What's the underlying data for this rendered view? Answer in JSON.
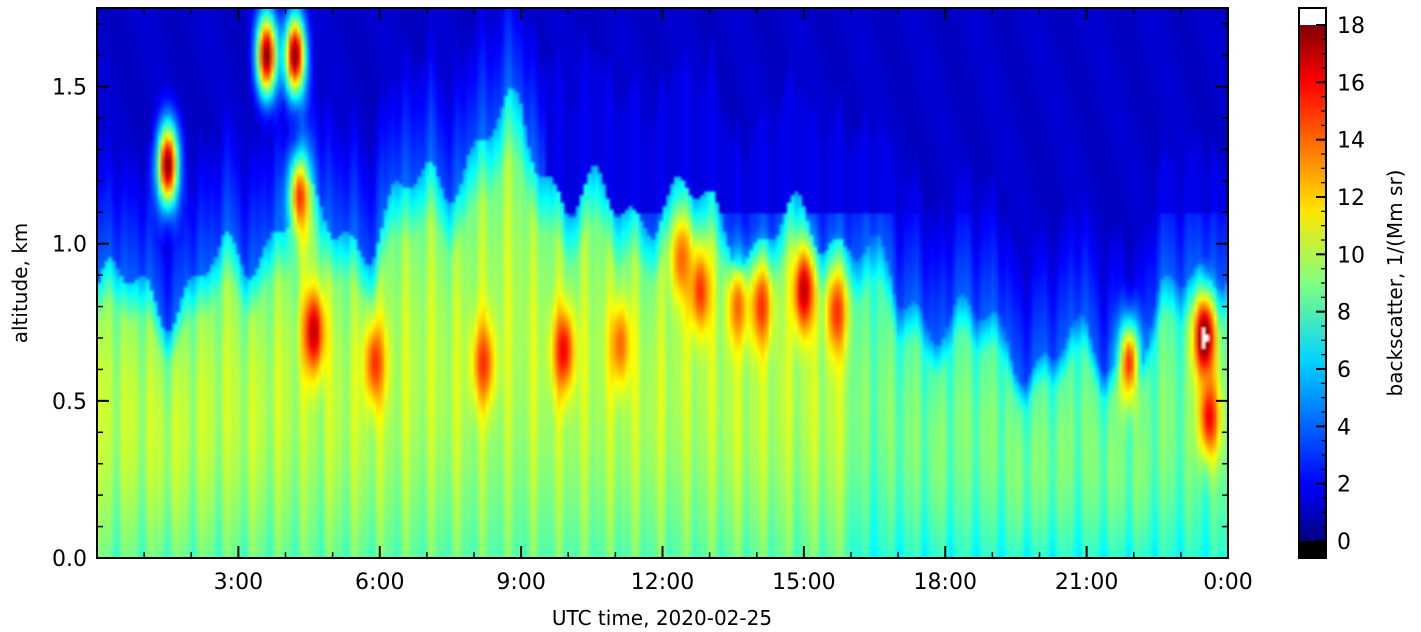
{
  "chart_data": {
    "type": "heatmap",
    "title": "",
    "xlabel": "UTC time,  2020-02-25",
    "ylabel": "altitude, km",
    "xlim": [
      0,
      24
    ],
    "ylim": [
      0,
      1.75
    ],
    "x_ticks": [
      {
        "value": 3,
        "label": "3:00"
      },
      {
        "value": 6,
        "label": "6:00"
      },
      {
        "value": 9,
        "label": "9:00"
      },
      {
        "value": 12,
        "label": "12:00"
      },
      {
        "value": 15,
        "label": "15:00"
      },
      {
        "value": 18,
        "label": "18:00"
      },
      {
        "value": 21,
        "label": "21:00"
      },
      {
        "value": 24,
        "label": "0:00"
      }
    ],
    "y_ticks": [
      {
        "value": 0.0,
        "label": "0.0"
      },
      {
        "value": 0.5,
        "label": "0.5"
      },
      {
        "value": 1.0,
        "label": "1.0"
      },
      {
        "value": 1.5,
        "label": "1.5"
      }
    ],
    "colorbar": {
      "label": "backscatter, 1/(Mm sr)",
      "range": [
        0,
        18
      ],
      "ticks": [
        {
          "value": 0,
          "label": "0"
        },
        {
          "value": 2,
          "label": "2"
        },
        {
          "value": 4,
          "label": "4"
        },
        {
          "value": 6,
          "label": "6"
        },
        {
          "value": 8,
          "label": "8"
        },
        {
          "value": 10,
          "label": "10"
        },
        {
          "value": 12,
          "label": "12"
        },
        {
          "value": 14,
          "label": "14"
        },
        {
          "value": 16,
          "label": "16"
        },
        {
          "value": 18,
          "label": "18"
        }
      ],
      "colormap": "jet",
      "over_color": "#ffffff",
      "under_color": "#000000"
    },
    "boundary_layer_top_km": [
      {
        "t": 0.5,
        "h": 0.85
      },
      {
        "t": 1.0,
        "h": 0.85
      },
      {
        "t": 2.0,
        "h": 0.85
      },
      {
        "t": 3.0,
        "h": 0.95
      },
      {
        "t": 4.0,
        "h": 1.1
      },
      {
        "t": 5.0,
        "h": 1.05
      },
      {
        "t": 6.0,
        "h": 1.05
      },
      {
        "t": 7.0,
        "h": 1.2
      },
      {
        "t": 8.0,
        "h": 1.3
      },
      {
        "t": 9.0,
        "h": 1.4
      },
      {
        "t": 10.0,
        "h": 1.15
      },
      {
        "t": 11.0,
        "h": 1.1
      },
      {
        "t": 12.0,
        "h": 1.15
      },
      {
        "t": 13.0,
        "h": 1.1
      },
      {
        "t": 14.0,
        "h": 1.0
      },
      {
        "t": 15.0,
        "h": 1.05
      },
      {
        "t": 16.0,
        "h": 1.05
      },
      {
        "t": 17.0,
        "h": 0.8
      },
      {
        "t": 18.0,
        "h": 0.8
      },
      {
        "t": 19.0,
        "h": 0.7
      },
      {
        "t": 20.0,
        "h": 0.65
      },
      {
        "t": 21.0,
        "h": 0.65
      },
      {
        "t": 22.0,
        "h": 0.65
      },
      {
        "t": 23.0,
        "h": 0.85
      },
      {
        "t": 24.0,
        "h": 1.0
      }
    ],
    "high_backscatter_features": [
      {
        "t": 1.5,
        "h": 1.25,
        "value": 18
      },
      {
        "t": 3.6,
        "h": 1.6,
        "value": 18
      },
      {
        "t": 4.2,
        "h": 1.6,
        "value": 18
      },
      {
        "t": 4.3,
        "h": 1.15,
        "value": 15
      },
      {
        "t": 4.6,
        "h": 0.72,
        "value": 17
      },
      {
        "t": 5.9,
        "h": 0.62,
        "value": 15
      },
      {
        "t": 8.2,
        "h": 0.62,
        "value": 15
      },
      {
        "t": 9.9,
        "h": 0.66,
        "value": 16
      },
      {
        "t": 11.1,
        "h": 0.68,
        "value": 14
      },
      {
        "t": 12.4,
        "h": 0.95,
        "value": 14
      },
      {
        "t": 12.8,
        "h": 0.85,
        "value": 15
      },
      {
        "t": 13.6,
        "h": 0.8,
        "value": 14
      },
      {
        "t": 14.1,
        "h": 0.8,
        "value": 15
      },
      {
        "t": 15.0,
        "h": 0.85,
        "value": 17
      },
      {
        "t": 15.7,
        "h": 0.78,
        "value": 15
      },
      {
        "t": 21.9,
        "h": 0.62,
        "value": 15
      },
      {
        "t": 23.5,
        "h": 0.7,
        "value": 19
      },
      {
        "t": 23.6,
        "h": 0.45,
        "value": 16
      }
    ]
  }
}
